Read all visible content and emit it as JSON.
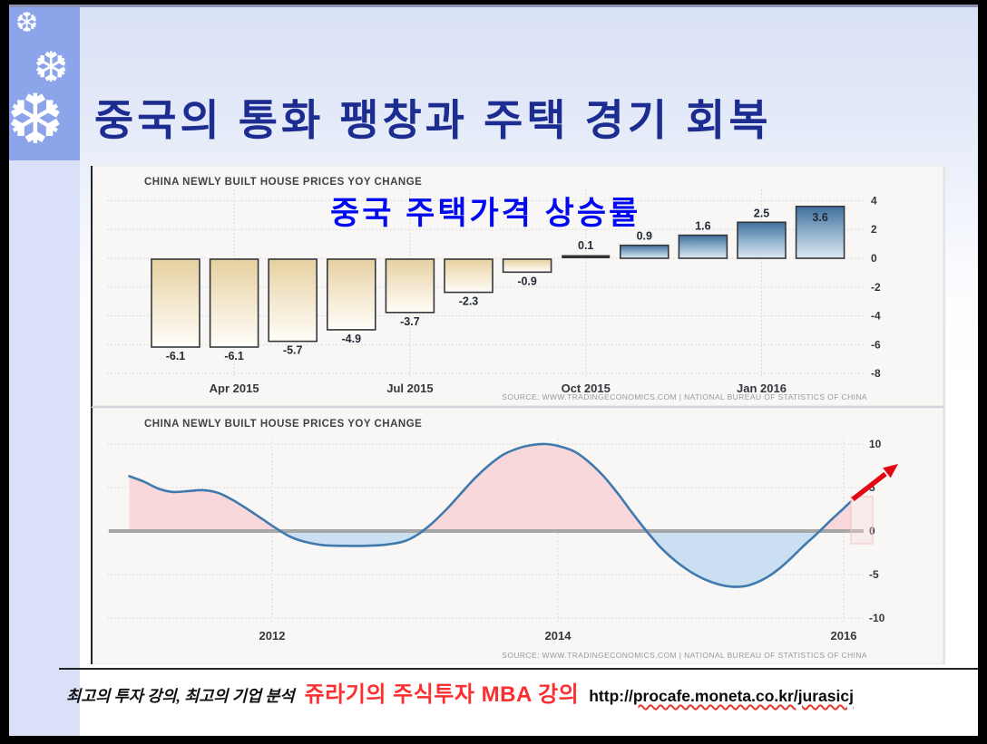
{
  "slide": {
    "title": "중국의 통화 팽창과 주택 경기 회복"
  },
  "icons": {
    "snowflake": "❆"
  },
  "colors": {
    "title_navy": "#1c2c90",
    "overlay_blue": "#0009f0",
    "sidebar_dark": "#8ba4ea",
    "sidebar_light": "#d9e0f8",
    "negative_bar_top": "#e6d0a0",
    "positive_bar_top": "#3f6f9c",
    "line": "#3f79ae",
    "area_positive_fill": "#f8d8da",
    "area_negative_fill": "#cadff2",
    "arrow_red": "#e30613",
    "footer_red": "#fb2f2f"
  },
  "top_chart": {
    "title": "CHINA NEWLY BUILT HOUSE PRICES YOY CHANGE",
    "overlay_label": "중국 주택가격 상승률",
    "source": "SOURCE: WWW.TRADINGECONOMICS.COM | NATIONAL BUREAU OF STATISTICS OF CHINA"
  },
  "bottom_chart": {
    "title": "CHINA NEWLY BUILT HOUSE PRICES YOY CHANGE",
    "source": "SOURCE: WWW.TRADINGECONOMICS.COM | NATIONAL BUREAU OF STATISTICS OF CHINA"
  },
  "footer": {
    "tagline": "최고의 투자 강의, 최고의 기업 분석",
    "course": "쥬라기의 주식투자 MBA 강의",
    "url_prefix": "http://",
    "url_body": "procafe.moneta.co.kr/jurasicj"
  },
  "chart_data": [
    {
      "type": "bar",
      "title": "CHINA NEWLY BUILT HOUSE PRICES YOY CHANGE",
      "overlay_title": "중국 주택가격 상승률",
      "values": [
        -6.1,
        -6.1,
        -5.7,
        -4.9,
        -3.7,
        -2.3,
        -0.9,
        0.1,
        0.9,
        1.6,
        2.5,
        3.6
      ],
      "x_tick_labels": [
        "Apr 2015",
        "Jul 2015",
        "Oct 2015",
        "Jan 2016"
      ],
      "x_tick_bar_index": [
        1,
        4,
        7,
        10
      ],
      "y_ticks": [
        4,
        2,
        0,
        -2,
        -4,
        -6,
        -8
      ],
      "ylim": [
        -8.8,
        4.9
      ],
      "grid": true,
      "legend_position": "none",
      "xlabel": "",
      "ylabel": "",
      "source": "SOURCE: WWW.TRADINGECONOMICS.COM | NATIONAL BUREAU OF STATISTICS OF CHINA"
    },
    {
      "type": "area",
      "title": "CHINA NEWLY BUILT HOUSE PRICES YOY CHANGE",
      "x": [
        2011.0,
        2011.1,
        2011.2,
        2011.3,
        2011.42,
        2011.52,
        2011.62,
        2011.72,
        2011.82,
        2011.92,
        2012.02,
        2012.12,
        2012.22,
        2012.35,
        2012.5,
        2012.65,
        2012.8,
        2012.92,
        2013.02,
        2013.12,
        2013.22,
        2013.32,
        2013.42,
        2013.52,
        2013.62,
        2013.72,
        2013.82,
        2013.92,
        2014.02,
        2014.12,
        2014.22,
        2014.32,
        2014.42,
        2014.52,
        2014.62,
        2014.72,
        2014.82,
        2014.92,
        2015.02,
        2015.12,
        2015.22,
        2015.32,
        2015.42,
        2015.52,
        2015.62,
        2015.72,
        2015.82,
        2015.92,
        2016.0,
        2016.05
      ],
      "y": [
        6.3,
        5.7,
        4.9,
        4.5,
        4.6,
        4.7,
        4.4,
        3.6,
        2.6,
        1.5,
        0.4,
        -0.6,
        -1.2,
        -1.6,
        -1.7,
        -1.7,
        -1.55,
        -1.2,
        -0.4,
        0.9,
        2.5,
        4.3,
        6.1,
        7.6,
        8.8,
        9.5,
        9.9,
        10.0,
        9.7,
        9.1,
        7.9,
        6.3,
        4.3,
        2.1,
        0.0,
        -1.9,
        -3.4,
        -4.6,
        -5.5,
        -6.1,
        -6.4,
        -6.3,
        -5.7,
        -4.7,
        -3.3,
        -1.7,
        -0.2,
        1.4,
        2.6,
        3.4
      ],
      "x_tick_labels": [
        "2012",
        "2014",
        "2016"
      ],
      "x_tick_values": [
        2012,
        2014,
        2016
      ],
      "y_ticks": [
        10,
        5,
        0,
        -5,
        -10
      ],
      "ylim": [
        -12,
        12
      ],
      "xlim": [
        2010.74,
        2016.71
      ],
      "grid": true,
      "fill_above_zero": "pink",
      "fill_below_zero": "light-blue",
      "annotation": "red rising trend arrow at series end",
      "source": "SOURCE: WWW.TRADINGECONOMICS.COM | NATIONAL BUREAU OF STATISTICS OF CHINA"
    }
  ]
}
